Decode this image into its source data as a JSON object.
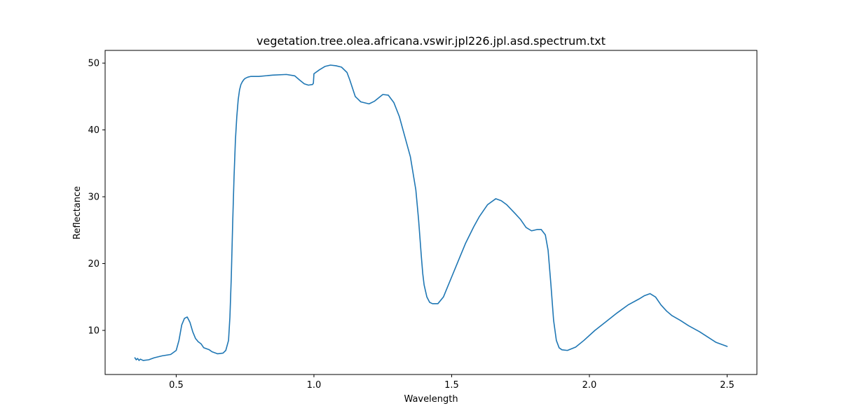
{
  "chart_data": {
    "type": "line",
    "title": "vegetation.tree.olea.africana.vswir.jpl226.jpl.asd.spectrum.txt",
    "xlabel": "Wavelength",
    "ylabel": "Reflectance",
    "xlim": [
      0.242,
      2.608
    ],
    "ylim": [
      3.4,
      51.9
    ],
    "xticks": [
      0.5,
      1.0,
      1.5,
      2.0,
      2.5
    ],
    "xtick_labels": [
      "0.5",
      "1.0",
      "1.5",
      "2.0",
      "2.5"
    ],
    "yticks": [
      10,
      20,
      30,
      40,
      50
    ],
    "ytick_labels": [
      "10",
      "20",
      "30",
      "40",
      "50"
    ],
    "grid": false,
    "line_color": "#1f77b4",
    "series": [
      {
        "x": [
          0.35,
          0.355,
          0.36,
          0.365,
          0.37,
          0.38,
          0.4,
          0.42,
          0.45,
          0.48,
          0.5,
          0.51,
          0.52,
          0.53,
          0.54,
          0.55,
          0.56,
          0.57,
          0.58,
          0.59,
          0.6,
          0.62,
          0.63,
          0.65,
          0.67,
          0.68,
          0.69,
          0.695,
          0.7,
          0.705,
          0.71,
          0.715,
          0.72,
          0.725,
          0.73,
          0.735,
          0.74,
          0.745,
          0.75,
          0.76,
          0.77,
          0.8,
          0.85,
          0.9,
          0.93,
          0.95,
          0.965,
          0.98,
          0.995,
          0.998,
          1.0,
          1.02,
          1.04,
          1.06,
          1.08,
          1.1,
          1.12,
          1.13,
          1.15,
          1.17,
          1.2,
          1.22,
          1.25,
          1.27,
          1.29,
          1.31,
          1.33,
          1.35,
          1.37,
          1.38,
          1.39,
          1.395,
          1.4,
          1.41,
          1.42,
          1.43,
          1.45,
          1.47,
          1.5,
          1.53,
          1.55,
          1.58,
          1.6,
          1.63,
          1.66,
          1.68,
          1.7,
          1.73,
          1.75,
          1.77,
          1.79,
          1.81,
          1.825,
          1.84,
          1.85,
          1.86,
          1.87,
          1.88,
          1.89,
          1.9,
          1.92,
          1.95,
          1.98,
          2.02,
          2.06,
          2.1,
          2.14,
          2.18,
          2.2,
          2.22,
          2.24,
          2.26,
          2.28,
          2.3,
          2.33,
          2.36,
          2.4,
          2.43,
          2.46,
          2.48,
          2.5
        ],
        "y": [
          5.9,
          5.6,
          5.8,
          5.5,
          5.7,
          5.5,
          5.6,
          5.9,
          6.2,
          6.4,
          7.0,
          8.5,
          10.8,
          11.8,
          12.0,
          11.2,
          9.8,
          8.8,
          8.3,
          8.0,
          7.4,
          7.1,
          6.8,
          6.5,
          6.6,
          7.0,
          8.5,
          12.0,
          18.0,
          26.0,
          33.0,
          38.5,
          42.0,
          44.5,
          46.0,
          46.8,
          47.2,
          47.5,
          47.7,
          47.9,
          48.0,
          48.0,
          48.2,
          48.3,
          48.1,
          47.4,
          46.9,
          46.7,
          46.8,
          47.0,
          48.4,
          49.0,
          49.5,
          49.7,
          49.6,
          49.4,
          48.6,
          47.5,
          45.0,
          44.2,
          43.9,
          44.3,
          45.3,
          45.2,
          44.1,
          42.0,
          39.0,
          36.0,
          31.0,
          26.5,
          21.0,
          18.5,
          16.8,
          15.0,
          14.2,
          14.0,
          14.0,
          15.0,
          18.0,
          21.0,
          23.0,
          25.5,
          27.0,
          28.8,
          29.7,
          29.4,
          28.8,
          27.5,
          26.6,
          25.4,
          24.9,
          25.1,
          25.1,
          24.3,
          22.0,
          17.0,
          11.5,
          8.5,
          7.4,
          7.1,
          7.0,
          7.5,
          8.5,
          10.0,
          11.3,
          12.6,
          13.8,
          14.7,
          15.2,
          15.5,
          15.0,
          13.8,
          12.9,
          12.2,
          11.5,
          10.7,
          9.8,
          9.0,
          8.2,
          7.9,
          7.6
        ]
      }
    ]
  }
}
